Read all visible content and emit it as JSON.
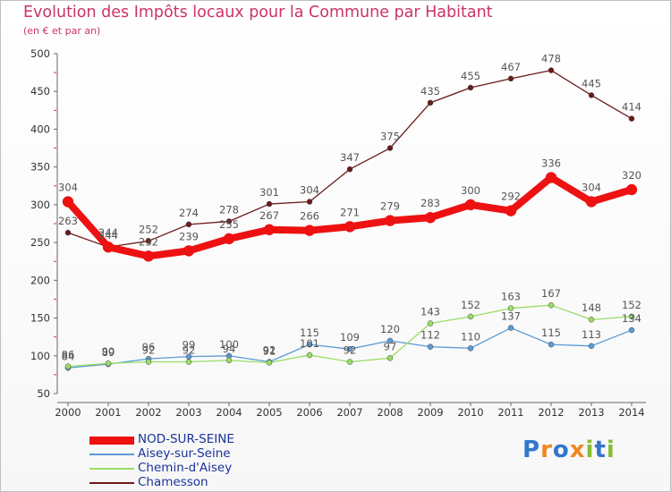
{
  "title": "Evolution des Impôts locaux pour la Commune par Habitant",
  "subtitle": "(en € et par an)",
  "logo": {
    "letters": [
      "P",
      "r",
      "o",
      "x",
      "i",
      "t",
      "i"
    ],
    "colors": [
      "#3377cc",
      "#ee8822",
      "#3377cc",
      "#ee8822",
      "#88bb33",
      "#3377cc",
      "#88bb33"
    ]
  },
  "chart_data": {
    "type": "line",
    "x": [
      "2000",
      "2001",
      "2002",
      "2003",
      "2004",
      "2005",
      "2006",
      "2007",
      "2008",
      "2009",
      "2010",
      "2011",
      "2012",
      "2013",
      "2014"
    ],
    "ylim": [
      50,
      500
    ],
    "yticks": [
      50,
      100,
      150,
      200,
      250,
      300,
      350,
      400,
      450,
      500
    ],
    "grid": false,
    "legend_position": "bottom-left",
    "series": [
      {
        "name": "NOD-SUR-SEINE",
        "color": "#ee1111",
        "values": [
          304,
          244,
          232,
          239,
          255,
          267,
          266,
          271,
          279,
          283,
          300,
          292,
          336,
          304,
          320
        ]
      },
      {
        "name": "Aisey-sur-Seine",
        "color": "#5b9bd5",
        "values": [
          84,
          89,
          96,
          99,
          100,
          92,
          115,
          109,
          120,
          112,
          110,
          137,
          115,
          113,
          134
        ]
      },
      {
        "name": "Chemin-d'Aisey",
        "color": "#99dd66",
        "values": [
          86,
          90,
          92,
          92,
          94,
          91,
          101,
          92,
          97,
          143,
          152,
          163,
          167,
          148,
          152
        ]
      },
      {
        "name": "Chamesson",
        "color": "#6b1a1a",
        "values": [
          263,
          244,
          252,
          274,
          278,
          301,
          304,
          347,
          375,
          435,
          455,
          467,
          478,
          445,
          414
        ]
      }
    ]
  }
}
